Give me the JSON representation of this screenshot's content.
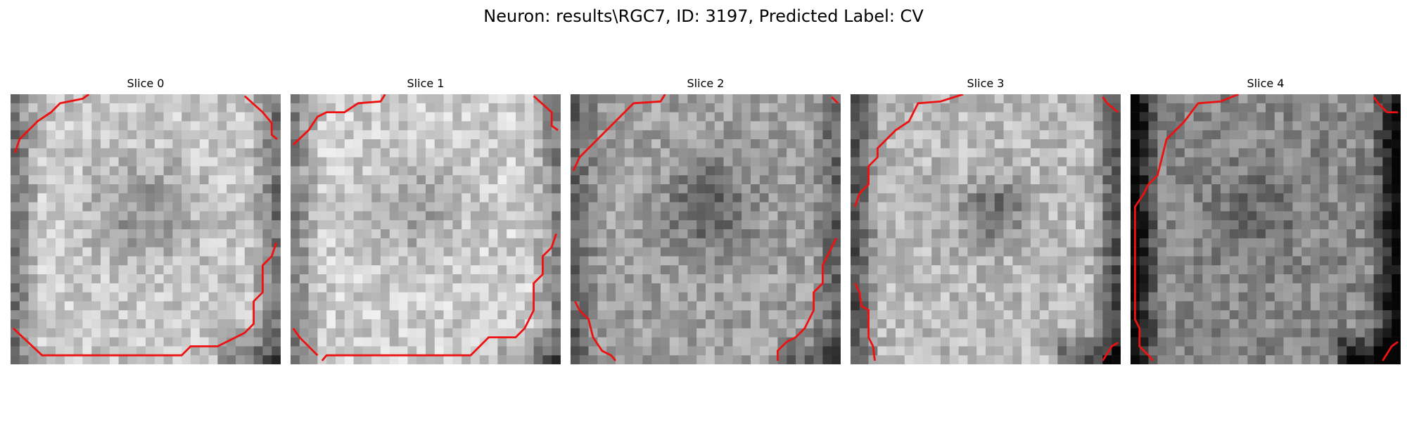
{
  "figure": {
    "title": "Neuron: results\\RGC7, ID: 3197, Predicted Label: CV"
  },
  "colors": {
    "contour": "#ee1111",
    "background": "#ffffff"
  },
  "slices": [
    {
      "title": "Slice 0"
    },
    {
      "title": "Slice 1"
    },
    {
      "title": "Slice 2"
    },
    {
      "title": "Slice 3"
    },
    {
      "title": "Slice 4"
    }
  ]
}
